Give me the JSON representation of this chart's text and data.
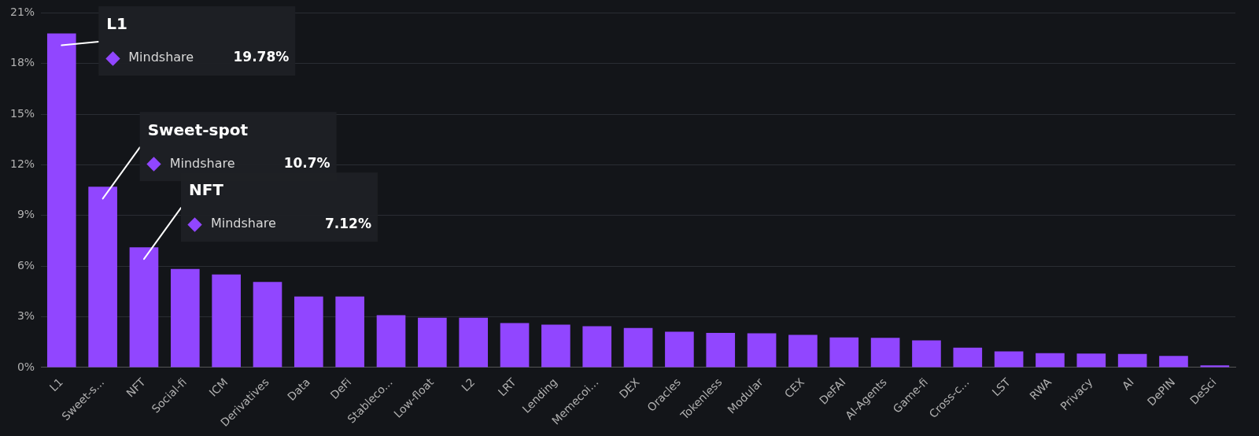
{
  "chart_data": {
    "type": "bar",
    "categories": [
      "L1",
      "Sweet-s...",
      "NFT",
      "Social-fi",
      "ICM",
      "Derivatives",
      "Data",
      "DeFi",
      "Stableco...",
      "Low-float",
      "L2",
      "LRT",
      "Lending",
      "Memecoi...",
      "DEX",
      "Oracles",
      "Tokenless",
      "Modular",
      "CEX",
      "DeFAI",
      "AI-Agents",
      "Game-fi",
      "Cross-c...",
      "LST",
      "RWA",
      "Privacy",
      "AI",
      "DePIN",
      "DeSci"
    ],
    "series": [
      {
        "name": "Mindshare",
        "color": "#9146ff",
        "values": [
          19.78,
          10.7,
          7.12,
          5.83,
          5.51,
          5.07,
          4.2,
          4.2,
          3.1,
          2.95,
          2.95,
          2.63,
          2.54,
          2.44,
          2.34,
          2.12,
          2.05,
          2.02,
          1.93,
          1.78,
          1.76,
          1.61,
          1.17,
          0.95,
          0.85,
          0.82,
          0.8,
          0.68,
          0.12
        ]
      }
    ],
    "ylim": [
      0,
      21
    ],
    "yticks": [
      {
        "value": 0,
        "label": "0%"
      },
      {
        "value": 3,
        "label": "3%"
      },
      {
        "value": 6,
        "label": "6%"
      },
      {
        "value": 9,
        "label": "9%"
      },
      {
        "value": 12,
        "label": "12%"
      },
      {
        "value": 15,
        "label": "15%"
      },
      {
        "value": 18,
        "label": "18%"
      },
      {
        "value": 21,
        "label": "21%"
      }
    ],
    "grid": "y",
    "legend": "top left",
    "annotations": [
      "L1",
      "19.78%",
      "Sweet-spot",
      "10.7%",
      "NFT",
      "7.12%"
    ]
  }
}
